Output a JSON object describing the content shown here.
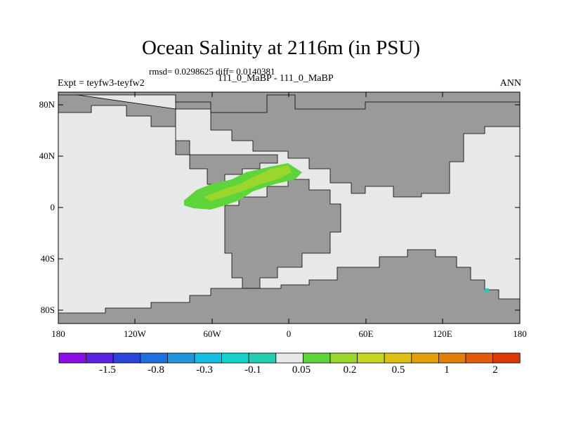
{
  "figure": {
    "title": "Ocean Salinity at 2116m (in PSU)",
    "stats": "rmsd= 0.0298625 diff= 0.0140381",
    "experiment": "Expt = teyfw3-teyfw2",
    "period": "111_0_MaBP - 111_0_MaBP",
    "season": "ANN"
  },
  "axes": {
    "y_ticks": [
      "80N",
      "40N",
      "0",
      "40S",
      "80S"
    ],
    "x_ticks": [
      "180",
      "120W",
      "60W",
      "0",
      "60E",
      "120E",
      "180"
    ]
  },
  "colors": {
    "land": "#9a9a9a",
    "ocean_near_zero": "#e8e8e8",
    "anomaly_light_green": "#9ad62b",
    "anomaly_green": "#5dd43a",
    "anomaly_cyan": "#22cdb0"
  },
  "colorbar": {
    "colors": [
      "#8a0ee6",
      "#5a22de",
      "#2b44da",
      "#1f6fdc",
      "#1f96dc",
      "#16bfdf",
      "#14d3c8",
      "#22cdb0",
      "#e8e8e8",
      "#5dd43a",
      "#9ad62b",
      "#c6d61e",
      "#dcc114",
      "#e0a00c",
      "#e07e08",
      "#e05c06",
      "#dc3a05"
    ],
    "labels": [
      "-1.5",
      "-0.8",
      "-0.3",
      "-0.1",
      "0.05",
      "0.2",
      "0.5",
      "1",
      "2"
    ]
  }
}
